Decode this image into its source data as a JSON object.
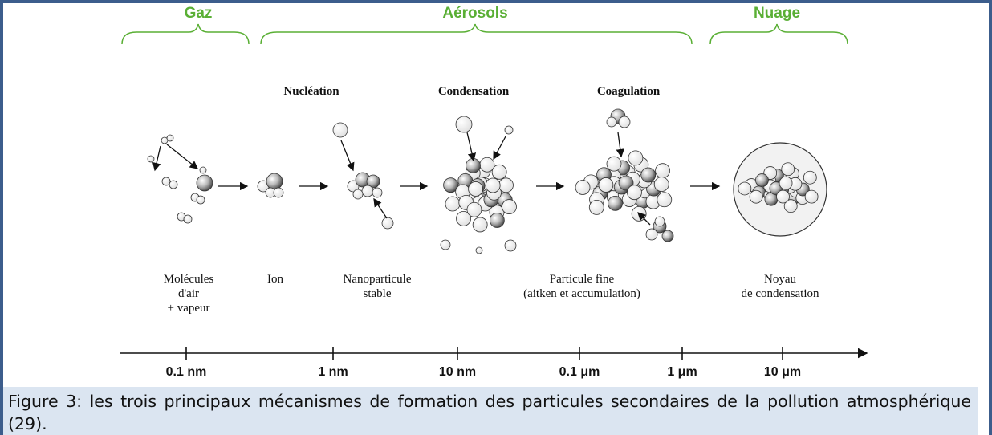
{
  "headers": [
    "Gaz",
    "Aérosols",
    "Nuage"
  ],
  "processes": [
    "Nucléation",
    "Condensation",
    "Coagulation"
  ],
  "stages": [
    {
      "lines": [
        "Molécules",
        "d'air",
        "+ vapeur"
      ]
    },
    {
      "lines": [
        "Ion"
      ]
    },
    {
      "lines": [
        "Nanoparticule",
        "stable"
      ]
    },
    {
      "lines": [
        "Particule fine",
        "(aitken et accumulation)"
      ]
    },
    {
      "lines": [
        "Noyau",
        "de condensation"
      ]
    }
  ],
  "axis": {
    "ticks": [
      "0.1 nm",
      "1 nm",
      "10 nm",
      "0.1 μm",
      "1 μm",
      "10 μm"
    ]
  },
  "caption": "Figure 3: les trois principaux mécanismes de formation des particules secondaires de la pollution atmosphérique (29)."
}
